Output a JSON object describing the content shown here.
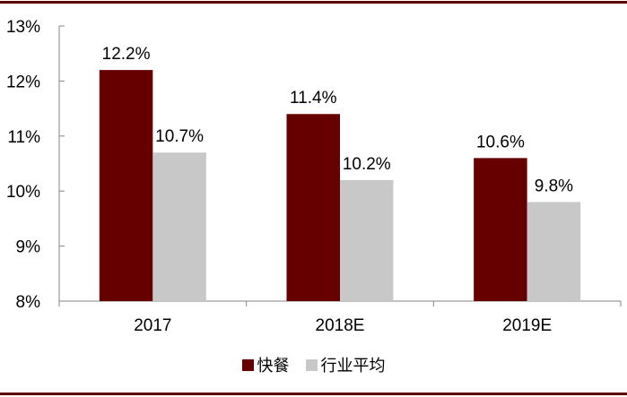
{
  "chart_data": {
    "type": "bar",
    "title": "",
    "xlabel": "",
    "ylabel": "",
    "categories": [
      "2017",
      "2018E",
      "2019E"
    ],
    "series": [
      {
        "name": "快餐",
        "values": [
          12.2,
          11.4,
          10.6
        ],
        "color": "#660000",
        "labels": [
          "12.2%",
          "11.4%",
          "10.6%"
        ]
      },
      {
        "name": "行业平均",
        "values": [
          10.7,
          10.2,
          9.8
        ],
        "color": "#c8c8c8",
        "labels": [
          "10.7%",
          "10.2%",
          "9.8%"
        ]
      }
    ],
    "ylim": [
      8,
      13
    ],
    "yticks": [
      8,
      9,
      10,
      11,
      12,
      13
    ],
    "ytick_labels": [
      "8%",
      "9%",
      "10%",
      "11%",
      "12%",
      "13%"
    ],
    "grid": false,
    "legend_position": "bottom"
  },
  "colors": {
    "rule": "#5c0000",
    "axis": "#868686"
  },
  "legend": {
    "items": [
      {
        "label": "快餐",
        "color": "#660000"
      },
      {
        "label": "行业平均",
        "color": "#c8c8c8"
      }
    ]
  }
}
